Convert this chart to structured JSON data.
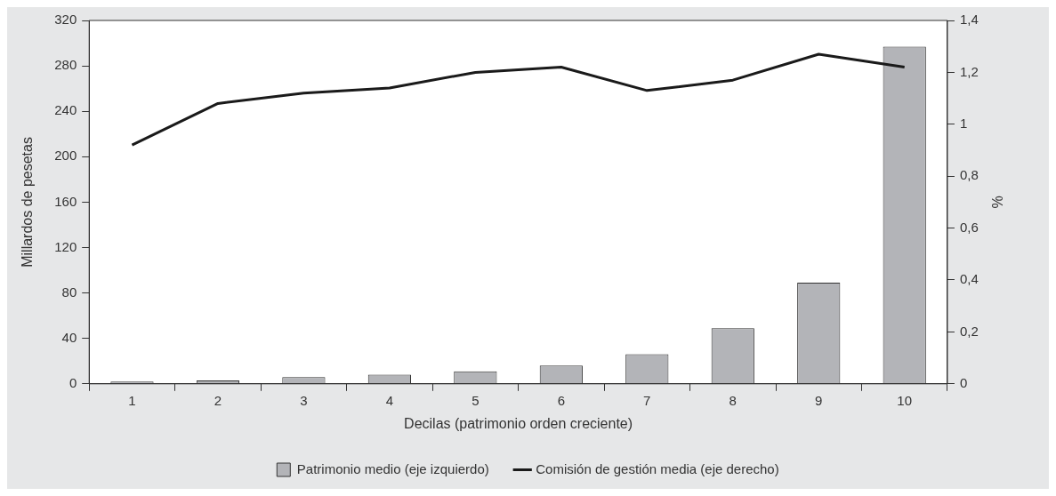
{
  "chart_data": {
    "type": "bar",
    "xlabel": "Decilas (patrimonio orden creciente)",
    "ylabel": "Millardos de pesetas",
    "y2label": "%",
    "categories": [
      "1",
      "2",
      "3",
      "4",
      "5",
      "6",
      "7",
      "8",
      "9",
      "10"
    ],
    "series": [
      {
        "name": "Patrimonio medio (eje izquierdo)",
        "color": "#b3b4b8",
        "values": [
          2,
          3,
          6,
          8,
          11,
          16,
          26,
          49,
          89,
          297
        ]
      },
      {
        "name": "Comisión de gestión media (eje derecho)",
        "type": "line",
        "axis": "y2",
        "color": "#1a1a1a",
        "values": [
          0.92,
          1.08,
          1.12,
          1.14,
          1.2,
          1.22,
          1.13,
          1.17,
          1.27,
          1.22
        ]
      }
    ],
    "ylim": [
      0,
      320
    ],
    "yticks": [
      0,
      40,
      80,
      120,
      160,
      200,
      240,
      280,
      320
    ],
    "y2lim": [
      0,
      1.4
    ],
    "y2ticks": [
      0,
      {
        "value": 0.2,
        "label": "0,2"
      },
      {
        "value": 0.4,
        "label": "0,4"
      },
      {
        "value": 0.6,
        "label": "0,6"
      },
      {
        "value": 0.8,
        "label": "0,8"
      },
      1,
      {
        "value": 1.2,
        "label": "1,2"
      },
      {
        "value": 1.4,
        "label": "1,4"
      }
    ],
    "grid": false,
    "legend": "bottom",
    "marker": "none"
  }
}
